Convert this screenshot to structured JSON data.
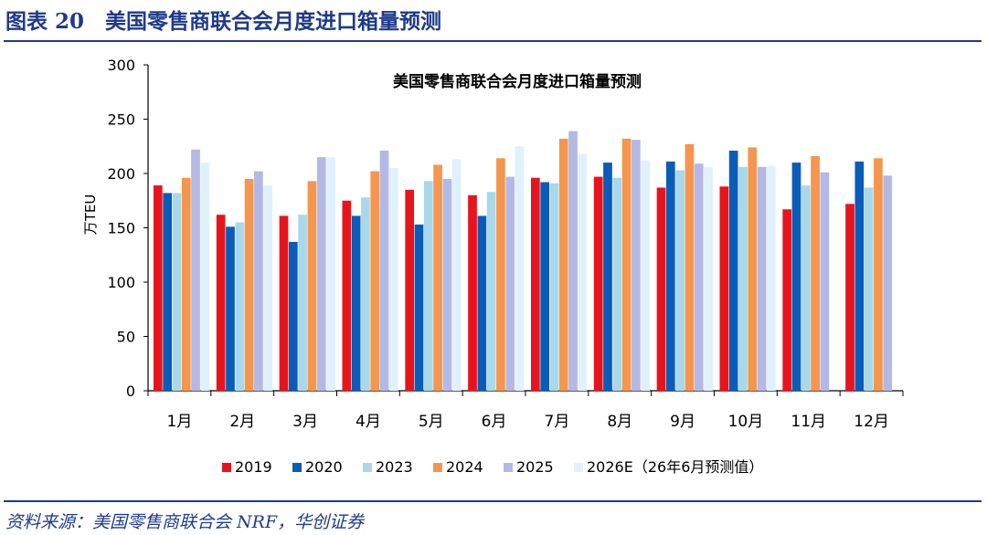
{
  "figure": {
    "header": "图表 20　美国零售商联合会月度进口箱量预测",
    "source": "资料来源：美国零售商联合会 NRF，华创证券"
  },
  "colors": {
    "header_blue": "#1f3a8a",
    "axis": "#000000"
  },
  "chart_data": {
    "type": "bar",
    "title": "美国零售商联合会月度进口箱量预测",
    "xlabel": "",
    "ylabel": "万TEU",
    "ylim": [
      0,
      300
    ],
    "yticks": [
      0,
      50,
      100,
      150,
      200,
      250,
      300
    ],
    "grid": false,
    "legend_position": "bottom",
    "categories": [
      "1月",
      "2月",
      "3月",
      "4月",
      "5月",
      "6月",
      "7月",
      "8月",
      "9月",
      "10月",
      "11月",
      "12月"
    ],
    "series": [
      {
        "name": "2019",
        "color": "#e8141c",
        "values": [
          189,
          162,
          161,
          175,
          185,
          180,
          196,
          197,
          187,
          188,
          167,
          172
        ]
      },
      {
        "name": "2020",
        "color": "#0a5cb8",
        "values": [
          182,
          151,
          137,
          161,
          153,
          161,
          192,
          210,
          211,
          221,
          210,
          211
        ]
      },
      {
        "name": "2023",
        "color": "#a8d8ea",
        "values": [
          182,
          155,
          162,
          178,
          193,
          183,
          191,
          196,
          203,
          206,
          189,
          187
        ]
      },
      {
        "name": "2024",
        "color": "#f4964e",
        "values": [
          196,
          195,
          193,
          202,
          208,
          214,
          232,
          232,
          227,
          224,
          216,
          214
        ]
      },
      {
        "name": "2025",
        "color": "#b4b8e4",
        "values": [
          222,
          202,
          215,
          221,
          195,
          197,
          239,
          231,
          209,
          206,
          201,
          198
        ]
      },
      {
        "name": "2026E（26年6月预测值）",
        "color": "#e0f1fb",
        "values": [
          210,
          189,
          215,
          205,
          213,
          225,
          218,
          212,
          206,
          207,
          null,
          null
        ]
      }
    ]
  }
}
